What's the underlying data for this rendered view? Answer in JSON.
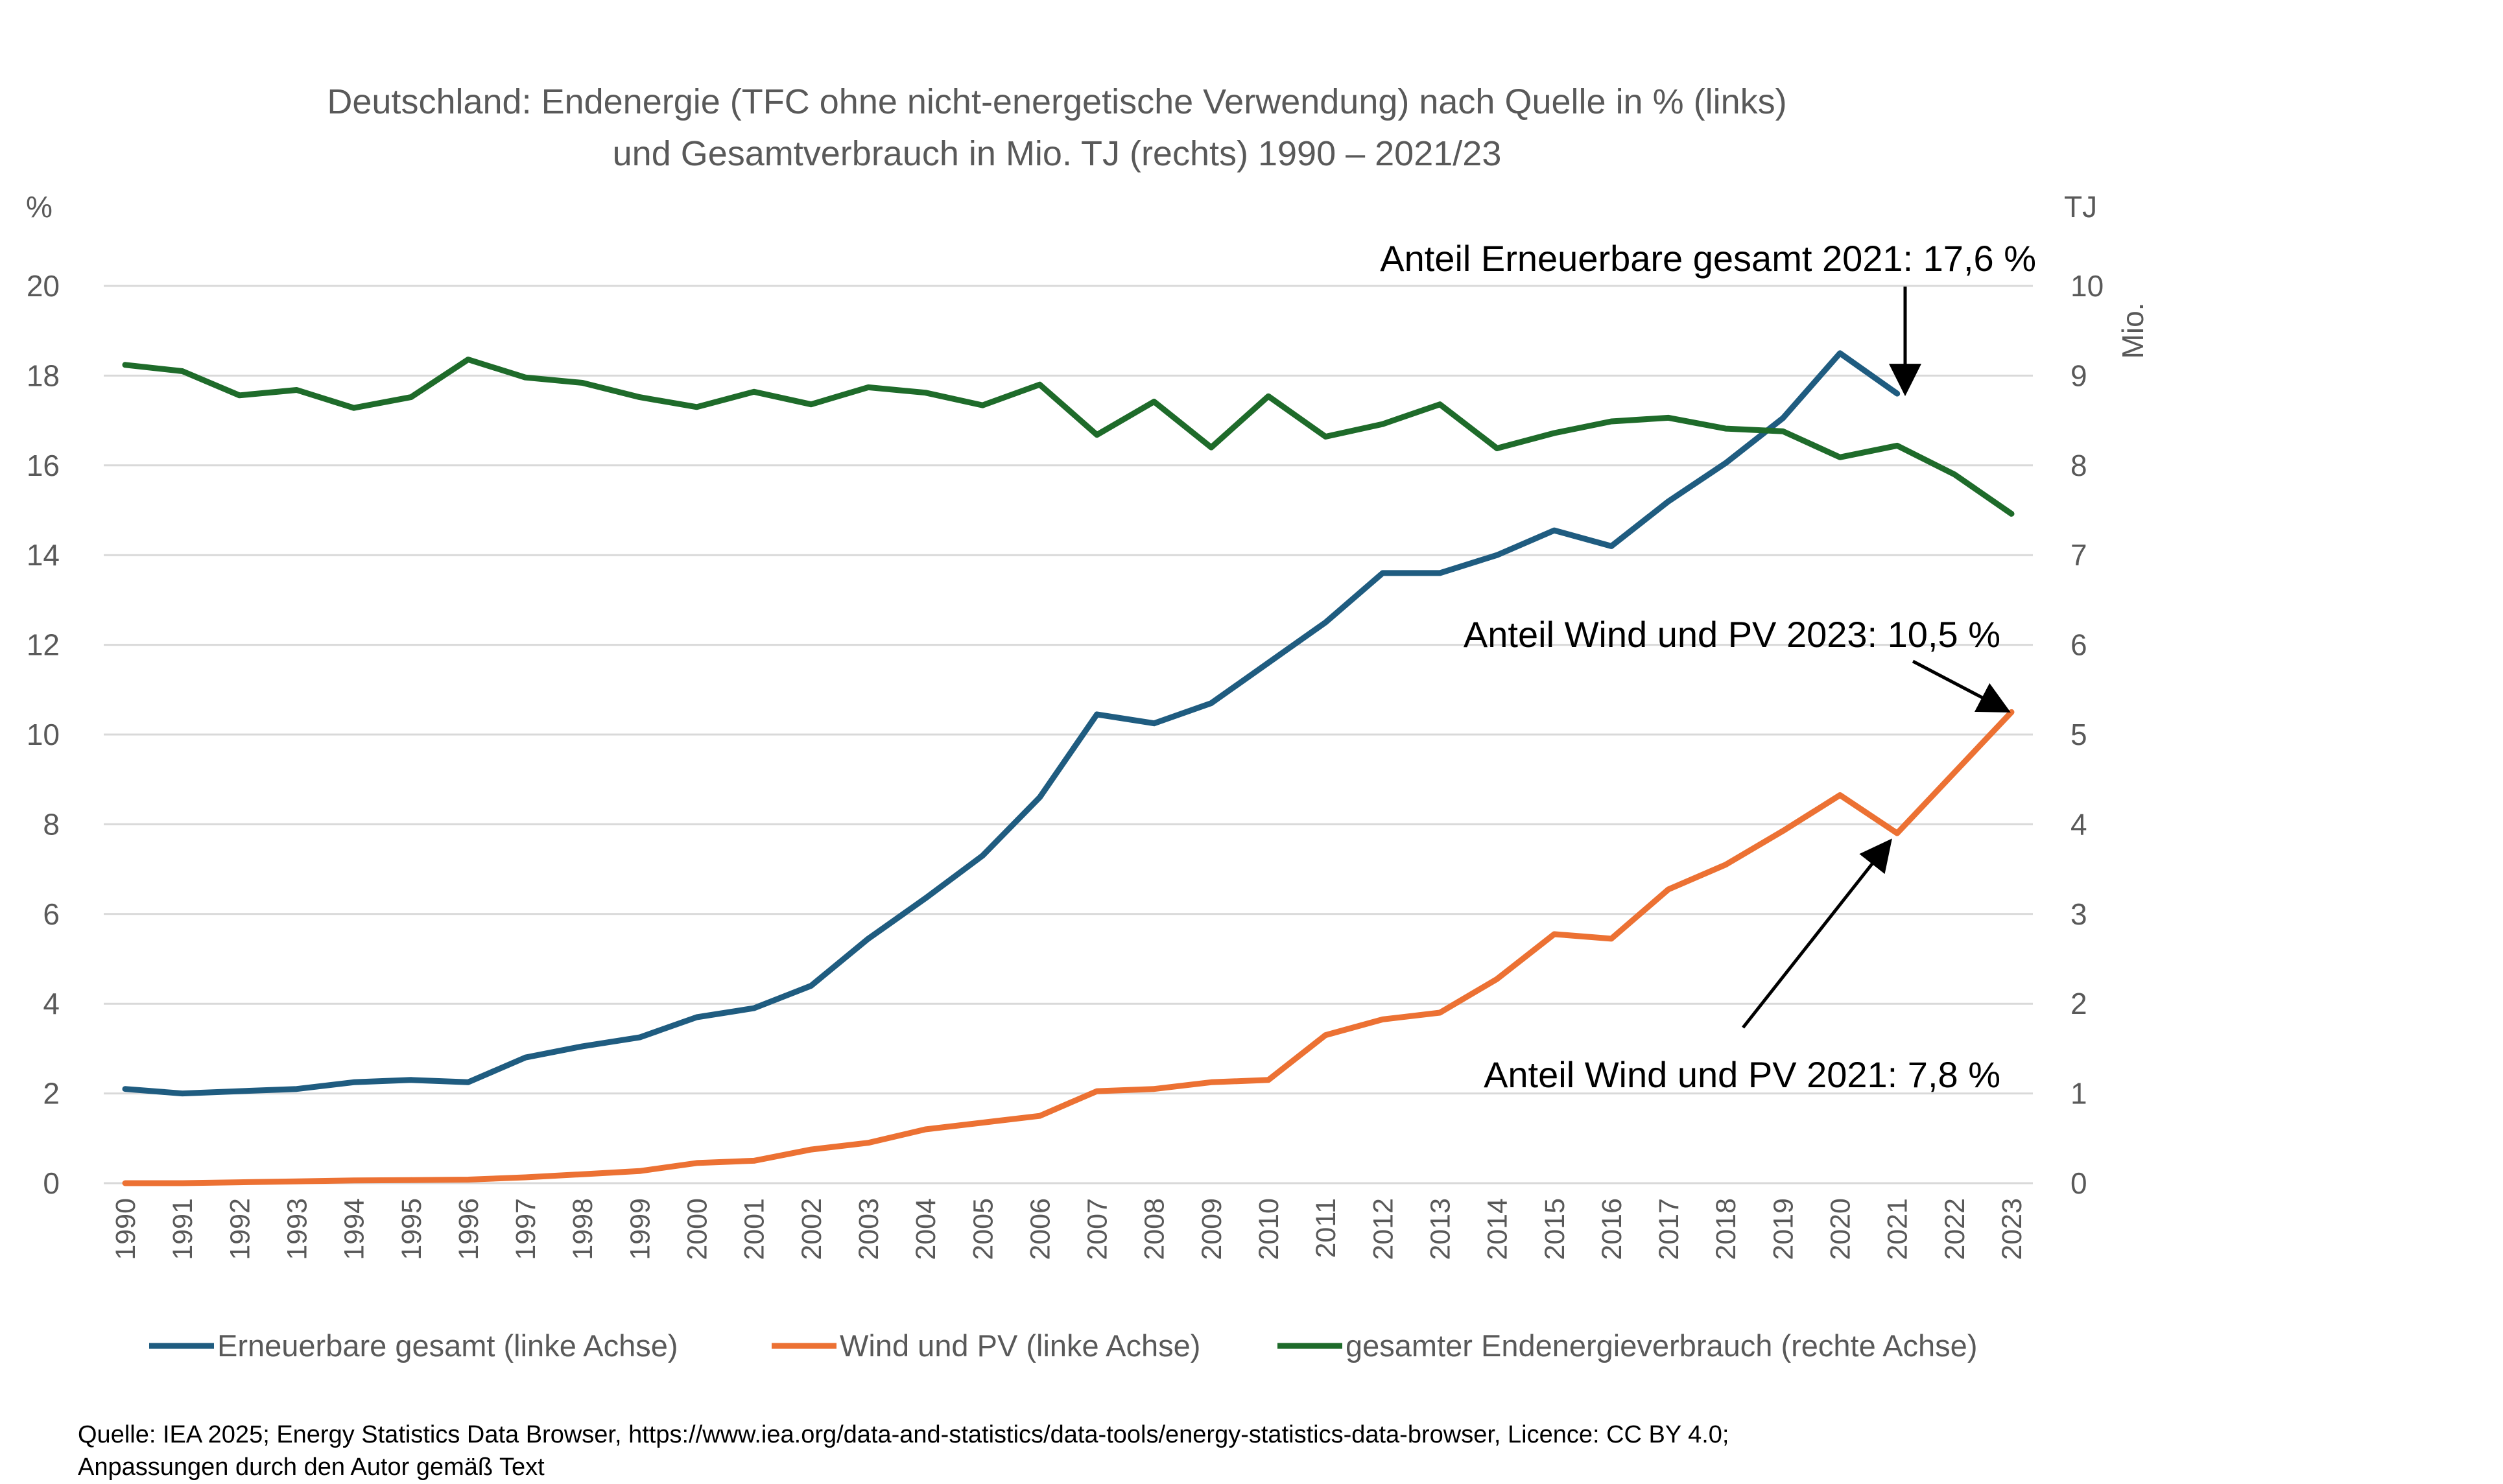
{
  "chart_data": {
    "type": "line",
    "title_line1": "Deutschland: Endenergie (TFC ohne nicht-energetische Verwendung) nach Quelle in % (links)",
    "title_line2": "und Gesamtverbrauch in Mio. TJ (rechts) 1990 – 2021/23",
    "left_axis": {
      "unit": "%",
      "range": [
        0,
        20
      ],
      "ticks": [
        "0",
        "2",
        "4",
        "6",
        "8",
        "10",
        "12",
        "14",
        "16",
        "18",
        "20"
      ]
    },
    "right_axis": {
      "unit": "TJ",
      "unit2": "Mio.",
      "range": [
        0,
        10
      ],
      "ticks": [
        "0",
        "1",
        "2",
        "3",
        "4",
        "5",
        "6",
        "7",
        "8",
        "9",
        "10"
      ]
    },
    "x": [
      "1990",
      "1991",
      "1992",
      "1993",
      "1994",
      "1995",
      "1996",
      "1997",
      "1998",
      "1999",
      "2000",
      "2001",
      "2002",
      "2003",
      "2004",
      "2005",
      "2006",
      "2007",
      "2008",
      "2009",
      "2010",
      "2011",
      "2012",
      "2013",
      "2014",
      "2015",
      "2016",
      "2017",
      "2018",
      "2019",
      "2020",
      "2021",
      "2022",
      "2023"
    ],
    "grid": "horizontal",
    "legend_position": "bottom",
    "series": [
      {
        "name": "Erneuerbare gesamt (linke Achse)",
        "axis": "left",
        "color": "#1f5c80",
        "values": [
          2.1,
          2.0,
          2.05,
          2.1,
          2.25,
          2.3,
          2.25,
          2.8,
          3.05,
          3.25,
          3.7,
          3.9,
          4.4,
          5.45,
          6.35,
          7.3,
          8.6,
          10.45,
          10.25,
          10.7,
          11.6,
          12.5,
          13.6,
          13.6,
          14.0,
          14.55,
          14.2,
          15.2,
          16.05,
          17.05,
          18.5,
          17.6,
          null,
          null
        ]
      },
      {
        "name": "Wind und PV (linke Achse)",
        "axis": "left",
        "color": "#ec7133",
        "values": [
          0.0,
          0.0,
          0.02,
          0.04,
          0.06,
          0.07,
          0.08,
          0.13,
          0.2,
          0.27,
          0.45,
          0.5,
          0.75,
          0.9,
          1.2,
          1.35,
          1.5,
          2.05,
          2.1,
          2.25,
          2.3,
          3.3,
          3.65,
          3.8,
          4.55,
          5.55,
          5.45,
          6.55,
          7.1,
          7.85,
          8.65,
          7.8,
          9.15,
          10.5
        ]
      },
      {
        "name": "gesamter Endenergieverbrauch (rechte Achse)",
        "axis": "right",
        "color": "#1e6b2a",
        "values": [
          9.12,
          9.05,
          8.78,
          8.84,
          8.64,
          8.76,
          9.18,
          8.98,
          8.92,
          8.76,
          8.65,
          8.82,
          8.68,
          8.87,
          8.81,
          8.67,
          8.9,
          8.34,
          8.71,
          8.2,
          8.77,
          8.32,
          8.46,
          8.68,
          8.19,
          8.36,
          8.49,
          8.53,
          8.41,
          8.38,
          8.09,
          8.22,
          7.9,
          7.46
        ]
      }
    ],
    "annotations": [
      {
        "text": "Anteil Erneuerbare gesamt 2021: 17,6 %",
        "points_to_year": "2021",
        "series": "Erneuerbare gesamt (linke Achse)"
      },
      {
        "text": "Anteil Wind und PV 2023: 10,5 %",
        "points_to_year": "2023",
        "series": "Wind und PV (linke Achse)"
      },
      {
        "text": "Anteil Wind und PV 2021: 7,8 %",
        "points_to_year": "2021",
        "series": "Wind und PV (linke Achse)"
      }
    ],
    "source_line1": "Quelle: IEA 2025; Energy Statistics Data Browser, https://www.iea.org/data-and-statistics/data-tools/energy-statistics-data-browser, Licence: CC BY 4.0;",
    "source_line2": "Anpassungen durch den Autor gemäß Text"
  }
}
